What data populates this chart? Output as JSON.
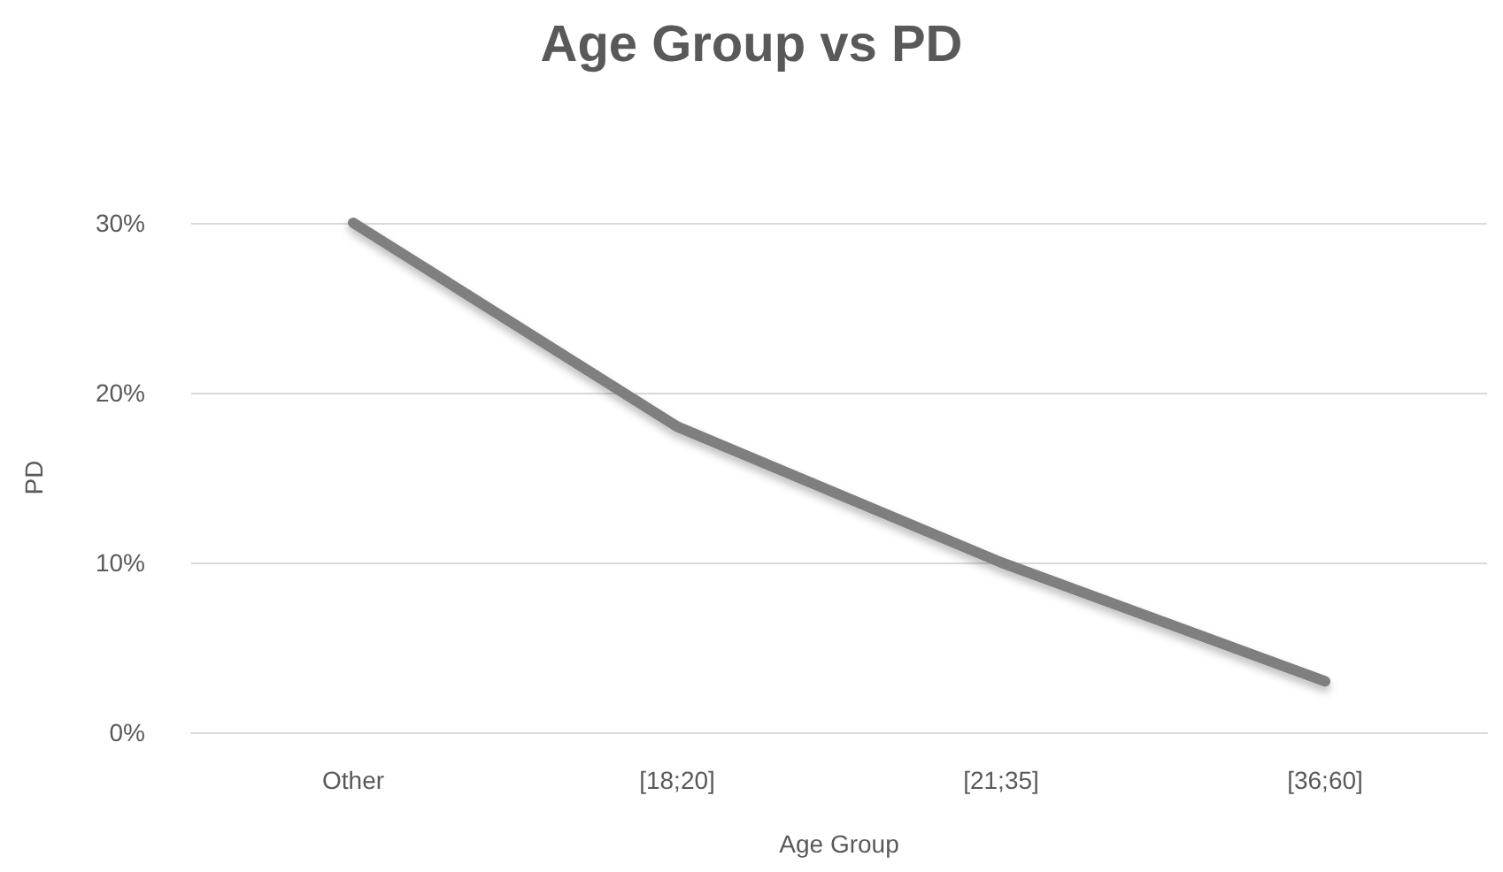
{
  "chart_data": {
    "type": "line",
    "title": "Age Group vs PD",
    "xlabel": "Age Group",
    "ylabel": "PD",
    "categories": [
      "Other",
      "[18;20]",
      "[21;35]",
      "[36;60]"
    ],
    "series": [
      {
        "color": "#7f7f7f",
        "values": [
          30,
          18,
          10,
          3
        ]
      }
    ],
    "ylim": [
      0,
      30
    ],
    "yticks": [
      {
        "value": 0,
        "label": "0%"
      },
      {
        "value": 10,
        "label": "10%"
      },
      {
        "value": 20,
        "label": "20%"
      },
      {
        "value": 30,
        "label": "30%"
      }
    ],
    "grid": "y",
    "marker": "none",
    "line_style": "solid"
  }
}
